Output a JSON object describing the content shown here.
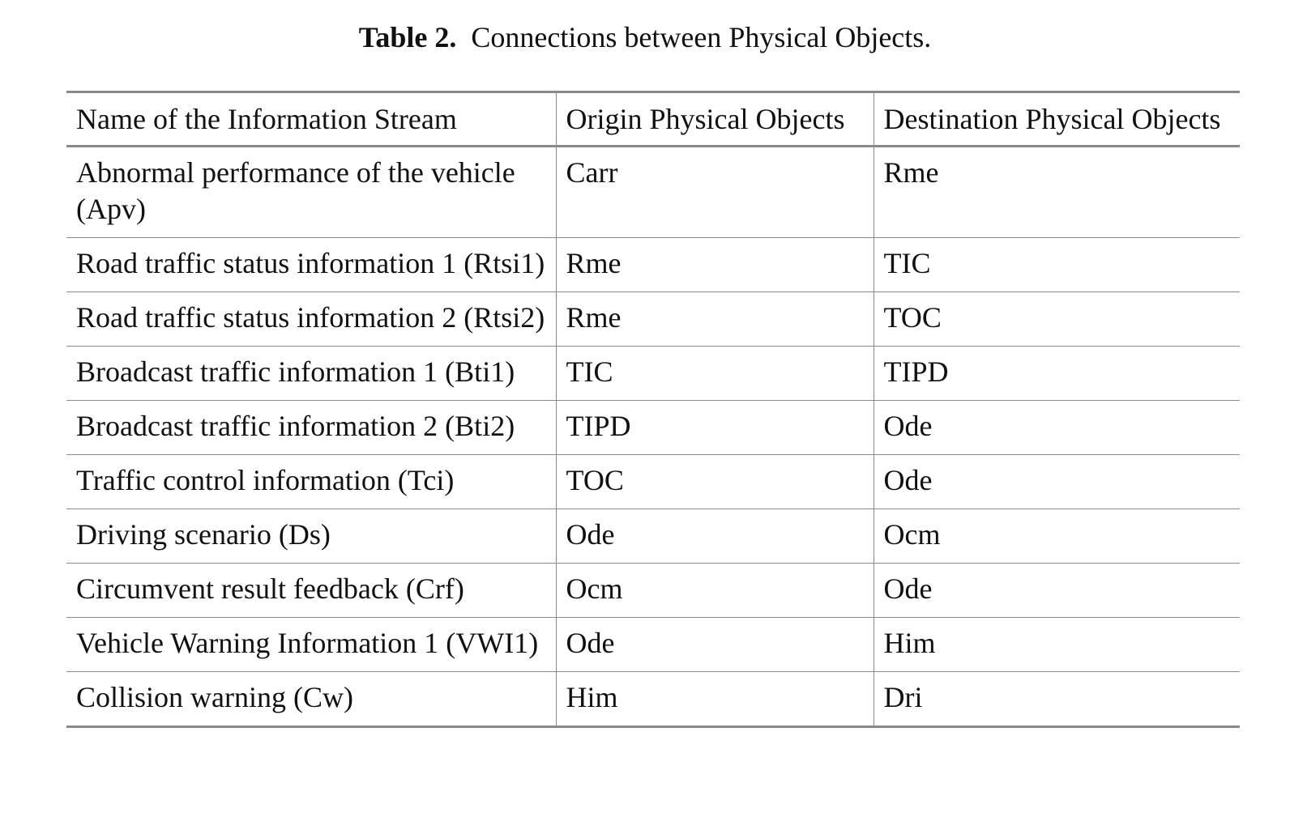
{
  "caption": {
    "label": "Table 2.",
    "text": "Connections between Physical Objects."
  },
  "table": {
    "headers": [
      "Name of the Information Stream",
      "Origin Physical Objects",
      "Destination Physical Objects"
    ],
    "rows": [
      [
        "Abnormal performance of the vehicle (Apv)",
        "Carr",
        "Rme"
      ],
      [
        "Road traffic status information 1 (Rtsi1)",
        "Rme",
        "TIC"
      ],
      [
        "Road traffic status information 2 (Rtsi2)",
        "Rme",
        "TOC"
      ],
      [
        "Broadcast traffic information 1 (Bti1)",
        "TIC",
        "TIPD"
      ],
      [
        "Broadcast traffic information 2 (Bti2)",
        "TIPD",
        "Ode"
      ],
      [
        "Traffic control information (Tci)",
        "TOC",
        "Ode"
      ],
      [
        "Driving scenario (Ds)",
        "Ode",
        "Ocm"
      ],
      [
        "Circumvent result feedback (Crf)",
        "Ocm",
        "Ode"
      ],
      [
        "Vehicle Warning Information 1 (VWI1)",
        "Ode",
        "Him"
      ],
      [
        "Collision warning (Cw)",
        "Him",
        "Dri"
      ]
    ]
  }
}
